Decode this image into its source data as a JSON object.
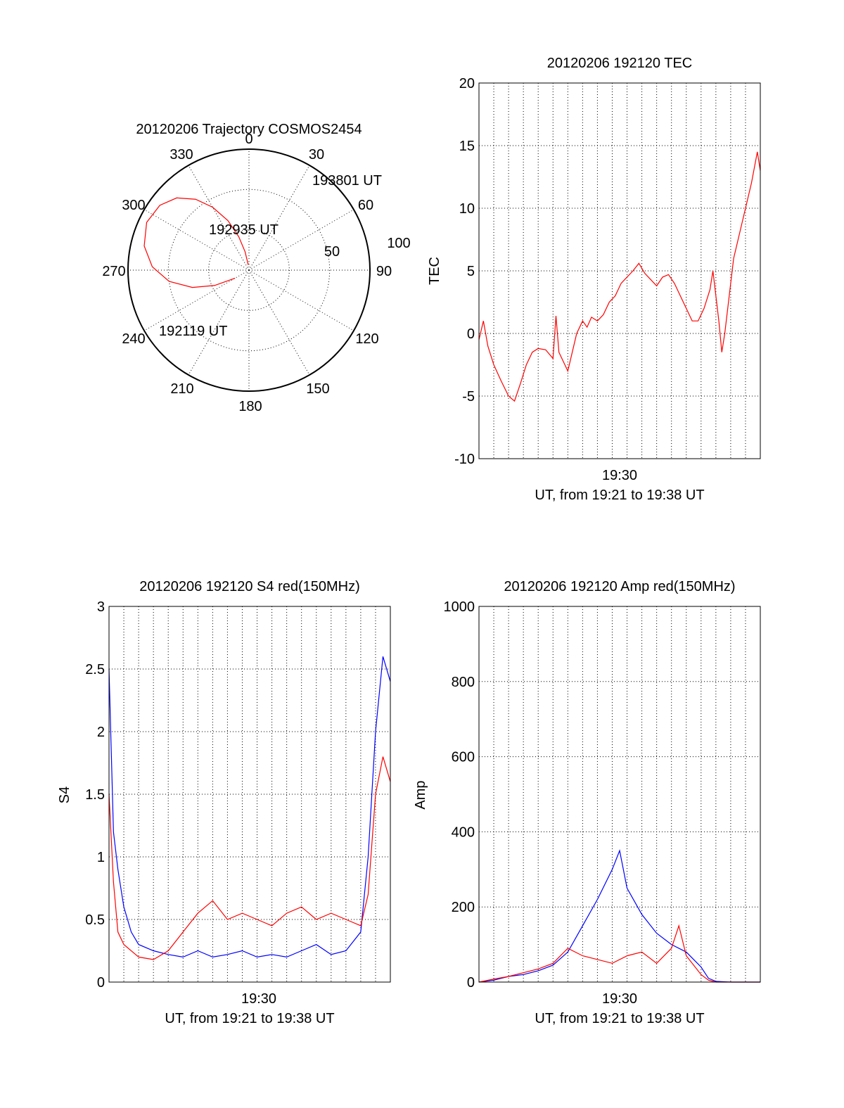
{
  "colors": {
    "red": "#ff0000",
    "blue": "#0000ff",
    "axis": "#000000",
    "grid": "#000000"
  },
  "chart_data": [
    {
      "type": "polar",
      "title": "20120206 Trajectory COSMOS2454",
      "angle_labels": [
        "0",
        "30",
        "60",
        "90",
        "120",
        "150",
        "180",
        "210",
        "240",
        "270",
        "300",
        "330"
      ],
      "radius_labels": [
        "50",
        "100"
      ],
      "grid": true,
      "trajectory": {
        "color": "red",
        "points": [
          [
            240,
            84
          ],
          [
            246,
            76
          ],
          [
            253,
            68
          ],
          [
            262,
            60
          ],
          [
            272,
            54
          ],
          [
            283,
            50
          ],
          [
            295,
            48
          ],
          [
            306,
            49
          ],
          [
            315,
            52
          ],
          [
            323,
            57
          ],
          [
            330,
            63
          ],
          [
            337,
            70
          ],
          [
            343,
            77
          ],
          [
            348,
            83
          ],
          [
            352,
            88
          ]
        ]
      },
      "annotations": [
        "193801 UT",
        "192935 UT",
        "192119 UT"
      ]
    },
    {
      "type": "line",
      "title": "20120206 192120 TEC",
      "ylabel": "TEC",
      "xlabel": "UT, from 19:21 to 19:38 UT",
      "xtick_labels": [
        "19:30"
      ],
      "ylim": [
        -10,
        20
      ],
      "yticks": [
        "20",
        "15",
        "10",
        "5",
        "0",
        "-5",
        "-10"
      ],
      "grid": true,
      "series": [
        {
          "color": "red",
          "points": [
            [
              0,
              -0.5
            ],
            [
              0.3,
              1
            ],
            [
              0.6,
              -1
            ],
            [
              1,
              -2.5
            ],
            [
              1.5,
              -3.8
            ],
            [
              2,
              -5
            ],
            [
              2.4,
              -5.4
            ],
            [
              2.8,
              -4
            ],
            [
              3.2,
              -2.5
            ],
            [
              3.6,
              -1.5
            ],
            [
              4,
              -1.2
            ],
            [
              4.5,
              -1.3
            ],
            [
              5,
              -2
            ],
            [
              5.2,
              1.4
            ],
            [
              5.4,
              -1.5
            ],
            [
              5.8,
              -2.5
            ],
            [
              6,
              -3
            ],
            [
              6.3,
              -1.5
            ],
            [
              6.6,
              0
            ],
            [
              7,
              1
            ],
            [
              7.3,
              0.5
            ],
            [
              7.6,
              1.3
            ],
            [
              8,
              1
            ],
            [
              8.4,
              1.5
            ],
            [
              8.8,
              2.5
            ],
            [
              9.2,
              3
            ],
            [
              9.6,
              4
            ],
            [
              10,
              4.5
            ],
            [
              10.4,
              5
            ],
            [
              10.8,
              5.6
            ],
            [
              11.2,
              4.8
            ],
            [
              11.6,
              4.3
            ],
            [
              12,
              3.8
            ],
            [
              12.4,
              4.5
            ],
            [
              12.8,
              4.7
            ],
            [
              13.2,
              4
            ],
            [
              13.6,
              3
            ],
            [
              14,
              2
            ],
            [
              14.4,
              1
            ],
            [
              14.8,
              1
            ],
            [
              15.2,
              2
            ],
            [
              15.6,
              3.5
            ],
            [
              15.8,
              5
            ],
            [
              16,
              3
            ],
            [
              16.2,
              1
            ],
            [
              16.4,
              -1.5
            ],
            [
              16.6,
              0
            ],
            [
              16.8,
              2
            ],
            [
              17,
              4
            ],
            [
              17.2,
              6
            ],
            [
              17.6,
              8
            ],
            [
              18,
              10
            ],
            [
              18.4,
              12
            ],
            [
              18.8,
              14.5
            ],
            [
              19,
              13
            ]
          ]
        }
      ]
    },
    {
      "type": "line",
      "title": "20120206 192120 S4 red(150MHz)",
      "ylabel": "S4",
      "xlabel": "UT, from 19:21 to 19:38 UT",
      "xtick_labels": [
        "19:30"
      ],
      "ylim": [
        0,
        3
      ],
      "yticks": [
        "3",
        "2.5",
        "2",
        "1.5",
        "1",
        "0.5",
        "0"
      ],
      "grid": true,
      "series": [
        {
          "color": "blue",
          "points": [
            [
              0,
              2.5
            ],
            [
              0.3,
              1.2
            ],
            [
              0.6,
              0.9
            ],
            [
              1,
              0.6
            ],
            [
              1.5,
              0.4
            ],
            [
              2,
              0.3
            ],
            [
              3,
              0.25
            ],
            [
              4,
              0.22
            ],
            [
              5,
              0.2
            ],
            [
              6,
              0.25
            ],
            [
              7,
              0.2
            ],
            [
              8,
              0.22
            ],
            [
              9,
              0.25
            ],
            [
              10,
              0.2
            ],
            [
              11,
              0.22
            ],
            [
              12,
              0.2
            ],
            [
              13,
              0.25
            ],
            [
              14,
              0.3
            ],
            [
              15,
              0.22
            ],
            [
              16,
              0.25
            ],
            [
              17,
              0.4
            ],
            [
              17.5,
              1
            ],
            [
              18,
              2
            ],
            [
              18.5,
              2.6
            ],
            [
              19,
              2.4
            ]
          ]
        },
        {
          "color": "red",
          "points": [
            [
              0,
              1.5
            ],
            [
              0.3,
              0.8
            ],
            [
              0.6,
              0.4
            ],
            [
              1,
              0.3
            ],
            [
              2,
              0.2
            ],
            [
              3,
              0.18
            ],
            [
              4,
              0.25
            ],
            [
              5,
              0.4
            ],
            [
              6,
              0.55
            ],
            [
              7,
              0.65
            ],
            [
              8,
              0.5
            ],
            [
              9,
              0.55
            ],
            [
              10,
              0.5
            ],
            [
              11,
              0.45
            ],
            [
              12,
              0.55
            ],
            [
              13,
              0.6
            ],
            [
              14,
              0.5
            ],
            [
              15,
              0.55
            ],
            [
              16,
              0.5
            ],
            [
              17,
              0.45
            ],
            [
              17.5,
              0.7
            ],
            [
              18,
              1.5
            ],
            [
              18.5,
              1.8
            ],
            [
              19,
              1.6
            ]
          ]
        }
      ]
    },
    {
      "type": "line",
      "title": "20120206 192120 Amp red(150MHz)",
      "ylabel": "Amp",
      "xlabel": "UT, from 19:21 to 19:38 UT",
      "xtick_labels": [
        "19:30"
      ],
      "ylim": [
        0,
        1000
      ],
      "yticks": [
        "1000",
        "800",
        "600",
        "400",
        "200",
        "0"
      ],
      "grid": true,
      "series": [
        {
          "color": "blue",
          "points": [
            [
              0,
              0
            ],
            [
              1,
              5
            ],
            [
              2,
              15
            ],
            [
              3,
              20
            ],
            [
              4,
              30
            ],
            [
              5,
              45
            ],
            [
              6,
              80
            ],
            [
              7,
              150
            ],
            [
              8,
              220
            ],
            [
              9,
              300
            ],
            [
              9.5,
              350
            ],
            [
              10,
              250
            ],
            [
              11,
              180
            ],
            [
              12,
              130
            ],
            [
              13,
              100
            ],
            [
              14,
              80
            ],
            [
              15,
              40
            ],
            [
              15.5,
              10
            ],
            [
              16,
              2
            ],
            [
              17,
              0
            ],
            [
              19,
              0
            ]
          ]
        },
        {
          "color": "red",
          "points": [
            [
              0,
              0
            ],
            [
              1,
              8
            ],
            [
              2,
              15
            ],
            [
              3,
              25
            ],
            [
              4,
              35
            ],
            [
              5,
              50
            ],
            [
              6,
              90
            ],
            [
              7,
              70
            ],
            [
              8,
              60
            ],
            [
              9,
              50
            ],
            [
              10,
              70
            ],
            [
              11,
              80
            ],
            [
              12,
              50
            ],
            [
              13,
              90
            ],
            [
              13.5,
              150
            ],
            [
              14,
              70
            ],
            [
              15,
              20
            ],
            [
              15.5,
              5
            ],
            [
              16,
              0
            ],
            [
              19,
              0
            ]
          ]
        }
      ]
    }
  ]
}
